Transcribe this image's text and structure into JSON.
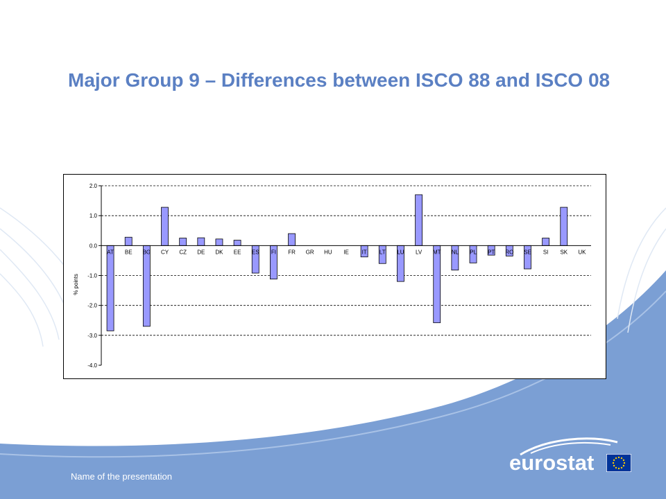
{
  "title": "Major Group 9 – Differences between ISCO 88 and ISCO 08",
  "footer": "Name of the presentation",
  "logo": {
    "text": "eurostat",
    "flag_icon": "eu-flag-icon"
  },
  "colors": {
    "title": "#5b80c3",
    "bar_fill": "#9999ff",
    "bar_stroke": "#000000",
    "swoosh": "#7b9fd4"
  },
  "chart_data": {
    "type": "bar",
    "title": "",
    "xlabel": "",
    "ylabel": "% points",
    "ylim": [
      -4.0,
      2.0
    ],
    "yticks": [
      "2.0",
      "1.0",
      "0.0",
      "-1.0",
      "-2.0",
      "-3.0",
      "-4.0"
    ],
    "grid": "dashed horizontal",
    "categories": [
      "AT",
      "BE",
      "BG",
      "CY",
      "CZ",
      "DE",
      "DK",
      "EE",
      "ES",
      "FI",
      "FR",
      "GR",
      "HU",
      "IE",
      "IT",
      "LT",
      "LU",
      "LV",
      "MT",
      "NL",
      "PL",
      "PT",
      "RO",
      "SE",
      "SI",
      "SK",
      "UK"
    ],
    "values": [
      -2.85,
      0.28,
      -2.7,
      1.28,
      0.25,
      0.26,
      0.22,
      0.18,
      -0.92,
      -1.12,
      0.4,
      0.0,
      0.0,
      0.0,
      -0.38,
      -0.6,
      -1.2,
      1.7,
      -2.58,
      -0.82,
      -0.58,
      -0.32,
      -0.35,
      -0.78,
      0.25,
      1.28,
      0.0
    ]
  }
}
